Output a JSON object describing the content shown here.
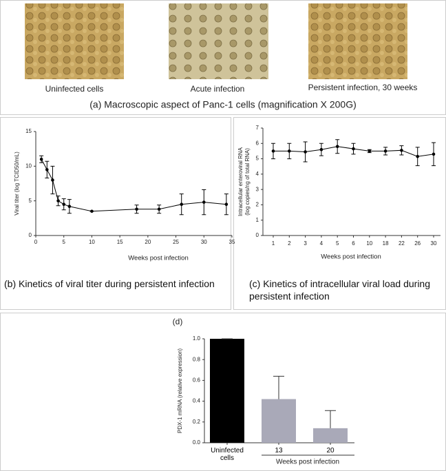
{
  "images": [
    {
      "caption": "Uninfected cells"
    },
    {
      "caption": "Acute infection"
    },
    {
      "caption": "Persistent infection, 30 weeks"
    }
  ],
  "panel_a_caption": "(a) Macroscopic aspect of Panc-1 cells (magnification X 200G)",
  "chart_data": [
    {
      "type": "line",
      "caption": "(b) Kinetics of viral titer during persistent infection",
      "x_label": "Weeks post infection",
      "y_label": "Viral titer (log TCID50/mL)",
      "x": [
        1,
        2,
        3,
        4,
        5,
        6,
        10,
        18,
        22,
        26,
        30,
        34
      ],
      "series": [
        {
          "color": "#000000",
          "values": [
            11,
            9.5,
            8,
            5,
            4.5,
            4.2,
            3.5,
            3.8,
            3.8,
            4.5,
            4.8,
            4.5
          ],
          "errors": [
            0.5,
            1.2,
            2,
            0.7,
            0.8,
            1,
            0,
            0.6,
            0.6,
            1.5,
            1.8,
            1.5
          ]
        }
      ],
      "xlim": [
        0,
        35
      ],
      "xticks": [
        0,
        5,
        10,
        15,
        20,
        25,
        30,
        35
      ],
      "ylim": [
        0,
        15
      ],
      "yticks": [
        0,
        5,
        10,
        15
      ]
    },
    {
      "type": "line",
      "caption": "(c) Kinetics of intracellular viral load during persistent infection",
      "x_label": "Weeks post infection",
      "y_label": [
        "Intracellular enteroviral RNA",
        "(log copies/ng of total RNA)"
      ],
      "categories": [
        "1",
        "2",
        "3",
        "4",
        "5",
        "6",
        "10",
        "18",
        "22",
        "26",
        "30"
      ],
      "series": [
        {
          "color": "#000000",
          "values": [
            5.5,
            5.5,
            5.45,
            5.6,
            5.8,
            5.65,
            5.5,
            5.5,
            5.55,
            5.15,
            5.3
          ],
          "errors": [
            0.5,
            0.5,
            0.65,
            0.4,
            0.45,
            0.35,
            0.1,
            0.25,
            0.3,
            0.6,
            0.75
          ]
        }
      ],
      "ylim": [
        0,
        7
      ],
      "yticks": [
        0,
        1,
        2,
        3,
        4,
        5,
        6,
        7
      ]
    },
    {
      "type": "bar",
      "title": "(d)",
      "y_label": "PDX-1 mRNA (relative expression)",
      "group_label": "Weeks post infection",
      "categories": [
        "Uninfected cells",
        "13",
        "20"
      ],
      "values": [
        1,
        0.42,
        0.14
      ],
      "errors": [
        0,
        0.22,
        0.17
      ],
      "colors": [
        "#000000",
        "#a9a9b8",
        "#a9a9b8"
      ],
      "ylim": [
        0,
        1
      ],
      "yticks": [
        {
          "value": 0,
          "label": "0.0"
        },
        0.2,
        0.4,
        0.6,
        0.8,
        {
          "value": 1,
          "label": "1.0"
        }
      ]
    }
  ]
}
